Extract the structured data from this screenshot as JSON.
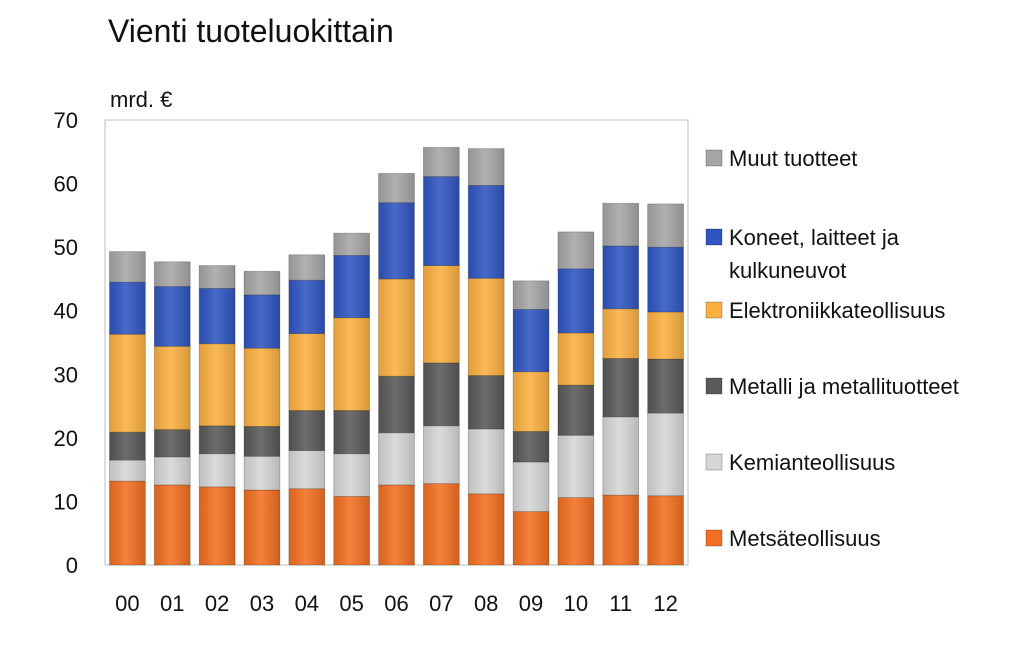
{
  "chart_data": {
    "type": "bar",
    "stacked": true,
    "title": "Vienti tuoteluokittain",
    "ylabel": "mrd. €",
    "ylim": [
      0,
      70
    ],
    "yticks": [
      0,
      10,
      20,
      30,
      40,
      50,
      60,
      70
    ],
    "grid": false,
    "legend": "right",
    "categories": [
      "00",
      "01",
      "02",
      "03",
      "04",
      "05",
      "06",
      "07",
      "08",
      "09",
      "10",
      "11",
      "12"
    ],
    "series": [
      {
        "name": "Metsäteollisuus",
        "color": "#f36f21",
        "values": [
          13.2,
          12.6,
          12.3,
          11.8,
          12.0,
          10.8,
          12.6,
          12.8,
          11.2,
          8.4,
          10.6,
          11.0,
          10.9
        ]
      },
      {
        "name": "Kemianteollisuus",
        "color": "#d6d6d6",
        "values": [
          3.3,
          4.4,
          5.2,
          5.3,
          6.0,
          6.7,
          8.2,
          9.1,
          10.2,
          7.8,
          9.8,
          12.3,
          13.0
        ]
      },
      {
        "name": "Metalli ja metallituotteet",
        "color": "#595959",
        "values": [
          4.4,
          4.3,
          4.4,
          4.7,
          6.3,
          6.8,
          8.9,
          9.9,
          8.4,
          4.8,
          7.9,
          9.2,
          8.5
        ]
      },
      {
        "name": "Elektroniikkateollisuus",
        "color": "#fbb040",
        "values": [
          15.4,
          13.1,
          12.9,
          12.3,
          12.1,
          14.6,
          15.3,
          15.3,
          15.3,
          9.4,
          8.2,
          7.8,
          7.4
        ]
      },
      {
        "name": "Koneet, laitteet ja kulkuneuvot",
        "color": "#2f55c1",
        "values": [
          8.2,
          9.4,
          8.7,
          8.4,
          8.4,
          9.8,
          12.0,
          14.0,
          14.6,
          9.8,
          10.1,
          9.9,
          10.2
        ]
      },
      {
        "name": "Muut tuotteet",
        "color": "#a6a6a6",
        "values": [
          4.8,
          3.9,
          3.6,
          3.7,
          4.0,
          3.5,
          4.6,
          4.6,
          5.8,
          4.5,
          5.8,
          6.7,
          6.8
        ]
      }
    ]
  }
}
